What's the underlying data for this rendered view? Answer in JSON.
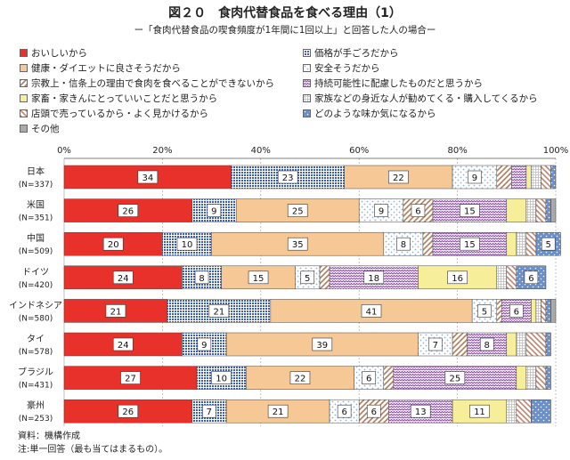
{
  "title": "図２０　食肉代替食品を食べる理由（1）",
  "subtitle": "ー「食肉代替食品の喫食頻度が1年間に1回以上」と回答した人の場合ー",
  "legend": [
    {
      "label": "おいしいから",
      "color": "#e8312a",
      "pattern": "solid"
    },
    {
      "label": "価格が手ごろだから",
      "color": "#3b5db5",
      "pattern": "grid"
    },
    {
      "label": "健康・ダイエットに良さそうだから",
      "color": "#f5c896",
      "pattern": "solid"
    },
    {
      "label": "安全そうだから",
      "color": "#8fb2d9",
      "pattern": "dots"
    },
    {
      "label": "宗教上・信条上の理由で食肉を食べることができないから",
      "color": "#b07c5c",
      "pattern": "diag"
    },
    {
      "label": "持続可能性に配慮したものだと思うから",
      "color": "#8a4aa5",
      "pattern": "zigzag"
    },
    {
      "label": "家畜・家きんにとっていいことだと思うから",
      "color": "#f7ee9a",
      "pattern": "solid"
    },
    {
      "label": "家族などの身近な人が勧めてくる・購入してくるから",
      "color": "#bdbdbd",
      "pattern": "hatch"
    },
    {
      "label": "店頭で売っているから・よく見かけるから",
      "color": "#c8826a",
      "pattern": "diag2"
    },
    {
      "label": "どのような味か気になるから",
      "color": "#6b8fc9",
      "pattern": "dots2"
    },
    {
      "label": "その他",
      "color": "#aaaaaa",
      "pattern": "solid"
    }
  ],
  "chart_data": {
    "type": "bar",
    "orientation": "horizontal-stacked-percent",
    "xlim": [
      0,
      100
    ],
    "x_ticks": [
      "0%",
      "20%",
      "40%",
      "60%",
      "80%",
      "100%"
    ],
    "categories": [
      {
        "name": "日本",
        "n": "(N=337)"
      },
      {
        "name": "米国",
        "n": "(N=351)"
      },
      {
        "name": "中国",
        "n": "(N=509)"
      },
      {
        "name": "ドイツ",
        "n": "(N=420)"
      },
      {
        "name": "インドネシア",
        "n": "(N=580)"
      },
      {
        "name": "タイ",
        "n": "(N=578)"
      },
      {
        "name": "ブラジル",
        "n": "(N=431)"
      },
      {
        "name": "豪州",
        "n": "(N=253)"
      }
    ],
    "series": [
      {
        "name": "おいしいから",
        "values": [
          34,
          26,
          20,
          24,
          21,
          24,
          27,
          26
        ]
      },
      {
        "name": "価格が手ごろだから",
        "values": [
          23,
          9,
          10,
          8,
          21,
          9,
          10,
          7
        ]
      },
      {
        "name": "健康・ダイエットに良さそうだから",
        "values": [
          22,
          25,
          35,
          15,
          41,
          39,
          22,
          21
        ]
      },
      {
        "name": "安全そうだから",
        "values": [
          9,
          9,
          8,
          5,
          5,
          7,
          6,
          6
        ]
      },
      {
        "name": "宗教上・信条上の理由で食肉を食べることができないから",
        "values": [
          3,
          6,
          2,
          2,
          1,
          3,
          2,
          6
        ]
      },
      {
        "name": "持続可能性に配慮したものだと思うから",
        "values": [
          3,
          15,
          15,
          18,
          6,
          8,
          25,
          13
        ]
      },
      {
        "name": "家畜・家きんにとっていいことだと思うから",
        "values": [
          1,
          4,
          2,
          16,
          1,
          2,
          2,
          11
        ]
      },
      {
        "name": "家族などの身近な人が勧めてくる・購入してくるから",
        "values": [
          2,
          2,
          2,
          2,
          1,
          2,
          2,
          2
        ]
      },
      {
        "name": "店頭で売っているから・よく見かけるから",
        "values": [
          2,
          2,
          2,
          2,
          1,
          4,
          2,
          3
        ]
      },
      {
        "name": "どのような味か気になるから",
        "values": [
          1,
          1,
          5,
          6,
          1,
          1,
          1,
          4
        ]
      },
      {
        "name": "その他",
        "values": [
          0,
          1,
          0,
          0,
          1,
          0,
          0,
          0
        ]
      }
    ],
    "data_labels": [
      [
        34,
        23,
        22,
        9,
        null,
        null,
        null,
        null,
        null,
        null,
        null
      ],
      [
        26,
        9,
        25,
        9,
        6,
        15,
        null,
        null,
        null,
        null,
        null
      ],
      [
        20,
        10,
        35,
        8,
        null,
        15,
        null,
        null,
        null,
        5,
        null
      ],
      [
        24,
        8,
        15,
        5,
        null,
        18,
        16,
        null,
        null,
        6,
        null
      ],
      [
        21,
        21,
        41,
        5,
        null,
        6,
        null,
        null,
        null,
        null,
        null
      ],
      [
        24,
        9,
        39,
        7,
        null,
        8,
        null,
        null,
        null,
        null,
        null
      ],
      [
        27,
        10,
        22,
        6,
        null,
        25,
        null,
        null,
        null,
        null,
        null
      ],
      [
        26,
        7,
        21,
        6,
        6,
        13,
        11,
        null,
        null,
        null,
        null
      ]
    ]
  },
  "footer": {
    "source": "資料：機構作成",
    "note": "注:単一回答（最も当てはまるもの）。"
  }
}
